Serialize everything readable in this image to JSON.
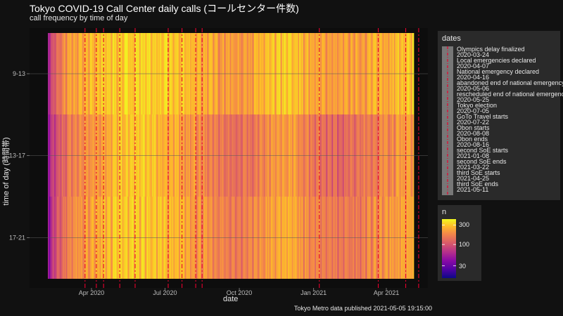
{
  "chart_data": {
    "type": "heatmap",
    "title": "Tokyo COVID-19 Call Center daily calls (コールセンター件数)",
    "subtitle": "call frequency by time of day",
    "xlabel": "date",
    "ylabel": "time of day (時間帯)",
    "caption": "Tokyo Metro data published 2021-05-05 19:15:00",
    "x_range": [
      "2020-02-07",
      "2021-05-04"
    ],
    "x_ticks": [
      "Apr 2020",
      "Jul 2020",
      "Oct 2020",
      "Jan 2021",
      "Apr 2021"
    ],
    "x_tick_dates": [
      "2020-04-01",
      "2020-07-01",
      "2020-10-01",
      "2021-01-01",
      "2021-04-01"
    ],
    "y_categories": [
      "9-13",
      "13-17",
      "17-21"
    ],
    "grid": true,
    "fill_legend": {
      "title": "n",
      "scale": "log",
      "breaks": [
        30,
        100,
        300
      ],
      "limits": [
        15,
        420
      ]
    },
    "events_legend": {
      "title": "dates",
      "placement": "right",
      "items": [
        {
          "label": "Olympics delay finalized",
          "date": "2020-03-24"
        },
        {
          "label": "Local emergencies declared",
          "date": "2020-04-07"
        },
        {
          "label": "National emergency declared",
          "date": "2020-04-16"
        },
        {
          "label": "abandoned end of national emergency",
          "date": "2020-05-06"
        },
        {
          "label": "rescheduled end of national emergency",
          "date": "2020-05-25"
        },
        {
          "label": "Tokyo election",
          "date": "2020-07-05"
        },
        {
          "label": "GoTo Travel starts",
          "date": "2020-07-22"
        },
        {
          "label": "Obon starts",
          "date": "2020-08-08"
        },
        {
          "label": "Obon ends",
          "date": "2020-08-16"
        },
        {
          "label": "second SoE starts",
          "date": "2021-01-08"
        },
        {
          "label": "second SoE ends",
          "date": "2021-03-22"
        },
        {
          "label": "third SoE starts",
          "date": "2021-04-25"
        },
        {
          "label": "third SoE ends",
          "date": "2021-05-11"
        }
      ]
    },
    "series": [
      {
        "name": "9-13",
        "monthly_level": [
          30,
          220,
          300,
          340,
          360,
          330,
          300,
          250,
          230,
          280,
          330,
          260,
          230,
          250,
          280,
          320
        ]
      },
      {
        "name": "13-17",
        "monthly_level": [
          25,
          160,
          230,
          300,
          330,
          280,
          230,
          170,
          150,
          190,
          240,
          170,
          140,
          160,
          200,
          240
        ]
      },
      {
        "name": "17-21",
        "monthly_level": [
          20,
          180,
          250,
          320,
          340,
          300,
          250,
          190,
          170,
          220,
          270,
          190,
          160,
          180,
          220,
          270
        ]
      }
    ],
    "monthly_level_months": [
      "2020-02",
      "2020-03",
      "2020-04",
      "2020-05",
      "2020-06",
      "2020-07",
      "2020-08",
      "2020-09",
      "2020-10",
      "2020-11",
      "2020-12",
      "2021-01",
      "2021-02",
      "2021-03",
      "2021-04",
      "2021-05"
    ]
  }
}
